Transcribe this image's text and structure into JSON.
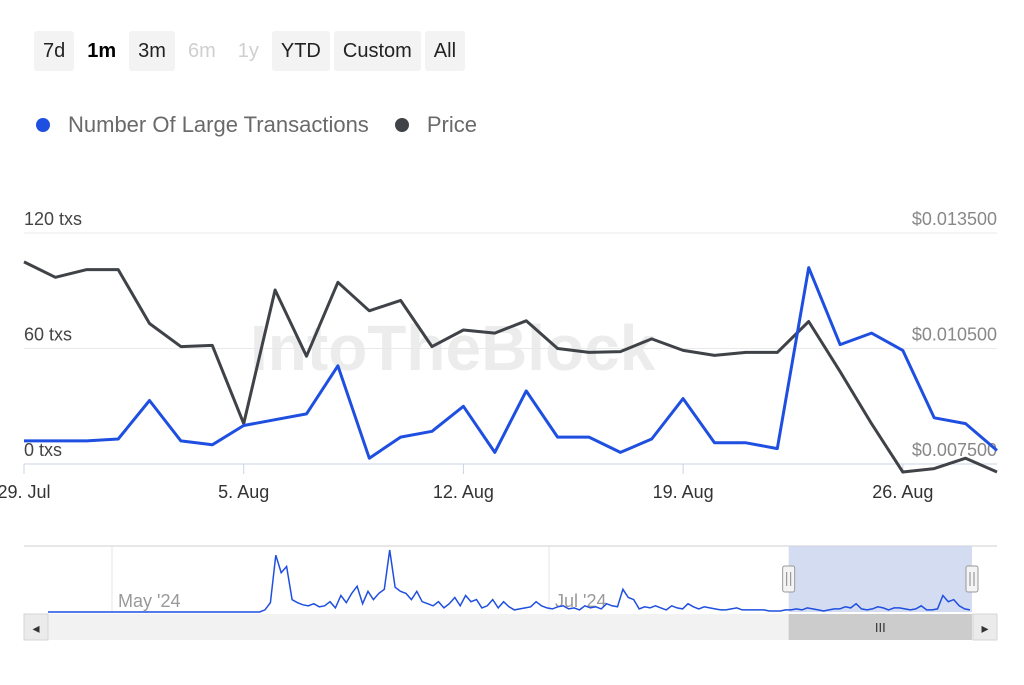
{
  "range_selector": {
    "buttons": [
      {
        "label": "7d",
        "state": "normal"
      },
      {
        "label": "1m",
        "state": "active"
      },
      {
        "label": "3m",
        "state": "normal"
      },
      {
        "label": "6m",
        "state": "disabled"
      },
      {
        "label": "1y",
        "state": "disabled"
      },
      {
        "label": "YTD",
        "state": "normal"
      },
      {
        "label": "Custom",
        "state": "normal"
      },
      {
        "label": "All",
        "state": "normal"
      }
    ]
  },
  "legend": [
    {
      "label": "Number Of Large Transactions",
      "color": "#1f4fe0"
    },
    {
      "label": "Price",
      "color": "#3f4247"
    }
  ],
  "watermark": "IntoTheBlock",
  "chart_data": {
    "type": "line",
    "x": [
      "29 Jul",
      "30 Jul",
      "31 Jul",
      "1 Aug",
      "2 Aug",
      "3 Aug",
      "4 Aug",
      "5 Aug",
      "6 Aug",
      "7 Aug",
      "8 Aug",
      "9 Aug",
      "10 Aug",
      "11 Aug",
      "12 Aug",
      "13 Aug",
      "14 Aug",
      "15 Aug",
      "16 Aug",
      "17 Aug",
      "18 Aug",
      "19 Aug",
      "20 Aug",
      "21 Aug",
      "22 Aug",
      "23 Aug",
      "24 Aug",
      "25 Aug",
      "26 Aug",
      "27 Aug",
      "28 Aug",
      "29 Aug"
    ],
    "x_tick_labels": [
      "29. Jul",
      "5. Aug",
      "12. Aug",
      "19. Aug",
      "26. Aug"
    ],
    "x_tick_index": [
      0,
      7,
      14,
      21,
      28
    ],
    "y_left": {
      "ticks": [
        "0 txs",
        "60 txs",
        "120 txs"
      ],
      "range": [
        0,
        120
      ]
    },
    "y_right": {
      "ticks": [
        "$0.007500",
        "$0.010500",
        "$0.013500"
      ],
      "range": [
        0.0075,
        0.0135
      ]
    },
    "series": [
      {
        "name": "Number Of Large Transactions",
        "axis": "left",
        "color": "#1f4fe0",
        "values": [
          12,
          12,
          12,
          13,
          33,
          12,
          10,
          20,
          23,
          26,
          51,
          3,
          14,
          17,
          30,
          6,
          38,
          14,
          14,
          6,
          13,
          34,
          11,
          11,
          8,
          102,
          62,
          68,
          59,
          24,
          21,
          7
        ]
      },
      {
        "name": "Price",
        "axis": "right",
        "color": "#3f4247",
        "values": [
          0.01275,
          0.01235,
          0.01255,
          0.01255,
          0.01115,
          0.01055,
          0.01058,
          0.00855,
          0.01202,
          0.0103,
          0.01222,
          0.01148,
          0.01175,
          0.01055,
          0.01098,
          0.0109,
          0.01122,
          0.0105,
          0.0104,
          0.01042,
          0.01075,
          0.01045,
          0.01032,
          0.0104,
          0.0104,
          0.0112,
          0.0099,
          0.00855,
          0.00705,
          0.00738,
          0.00765,
          0.00725
        ]
      }
    ]
  },
  "navigator": {
    "labels": [
      "May '24",
      "Jul '24"
    ],
    "values": [
      0,
      0,
      0,
      0,
      0,
      0,
      0,
      0,
      0,
      0,
      0,
      0,
      0,
      0,
      0,
      0,
      0,
      0,
      0,
      0,
      0,
      0,
      0,
      0,
      0,
      0,
      0,
      0,
      0,
      0,
      0,
      0,
      0,
      0,
      0,
      0,
      0,
      0,
      0,
      0,
      2,
      9,
      55,
      38,
      44,
      12,
      9,
      7,
      6,
      8,
      5,
      6,
      10,
      4,
      16,
      9,
      18,
      25,
      8,
      20,
      12,
      18,
      22,
      60,
      24,
      20,
      18,
      12,
      20,
      10,
      8,
      6,
      10,
      4,
      8,
      14,
      6,
      16,
      10,
      12,
      4,
      6,
      12,
      4,
      10,
      5,
      2,
      3,
      4,
      5,
      10,
      6,
      4,
      3,
      5,
      6,
      3,
      4,
      2,
      6,
      4,
      5,
      3,
      8,
      6,
      5,
      22,
      14,
      12,
      3,
      5,
      4,
      6,
      4,
      2,
      6,
      4,
      3,
      8,
      5,
      3,
      5,
      4,
      3,
      2,
      2,
      3,
      4,
      2,
      2,
      2,
      2,
      2,
      1,
      1,
      1,
      2,
      2,
      3,
      2,
      4,
      3,
      2,
      1,
      2,
      3,
      3,
      5,
      4,
      8,
      3,
      2,
      3,
      5,
      4,
      2,
      4,
      4,
      3,
      2,
      3,
      6,
      2,
      2,
      3,
      16,
      10,
      12,
      6,
      3,
      2
    ],
    "selection_start": 0.78,
    "selection_end": 1.0
  },
  "scrollbar": {
    "left_arrow": "◂",
    "right_arrow": "▸",
    "grip": "III"
  }
}
